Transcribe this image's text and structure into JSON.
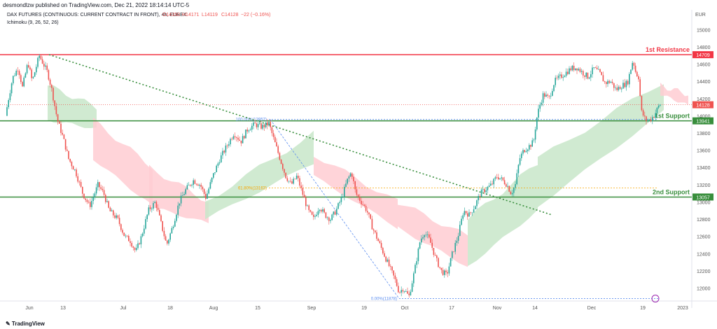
{
  "header": {
    "publisher": "desmondlzw published on TradingView.com, Dec 21, 2022 18:14:14 UTC-5",
    "symbol_line": "DAX FUTURES (CONTINUOUS: CURRENT CONTRACT IN FRONT), 4h, EUREX",
    "ohlc": {
      "o": "O14150",
      "h": "H14171",
      "l": "L14119",
      "c": "C14128",
      "chg": "−22 (−0.16%)"
    },
    "indicator": "Ichimoku (9, 26, 52, 26)",
    "currency": "EUR"
  },
  "colors": {
    "up": "#26a69a",
    "down": "#ef5350",
    "cloud_up": "#c8e6c9",
    "cloud_down": "#ffcdd2",
    "resistance": "#f23645",
    "support": "#388e3c",
    "trend": "#388e3c",
    "fib": "#5b8def",
    "fib618": "#f7a600"
  },
  "chart_data": {
    "type": "candlestick",
    "ylim": [
      11850,
      15100
    ],
    "y_ticks": [
      12000,
      12200,
      12400,
      12600,
      12800,
      13000,
      13200,
      13400,
      13600,
      13800,
      14000,
      14200,
      14400,
      14600,
      14800,
      15000
    ],
    "x_ticks": [
      "Jun",
      "13",
      "Jul",
      "18",
      "Aug",
      "15",
      "Sep",
      "19",
      "Oct",
      "17",
      "Nov",
      "14",
      "Dec",
      "19",
      "2023"
    ],
    "price_path": [
      [
        0,
        14000
      ],
      [
        3,
        14150
      ],
      [
        10,
        14440
      ],
      [
        18,
        14560
      ],
      [
        24,
        14330
      ],
      [
        32,
        14620
      ],
      [
        38,
        14400
      ],
      [
        48,
        14700
      ],
      [
        60,
        14500
      ],
      [
        66,
        14300
      ],
      [
        74,
        13950
      ],
      [
        82,
        13750
      ],
      [
        90,
        13500
      ],
      [
        100,
        13350
      ],
      [
        110,
        13100
      ],
      [
        120,
        12950
      ],
      [
        132,
        13200
      ],
      [
        140,
        13100
      ],
      [
        148,
        12900
      ],
      [
        160,
        12800
      ],
      [
        170,
        12600
      ],
      [
        178,
        12550
      ],
      [
        186,
        12420
      ],
      [
        194,
        12600
      ],
      [
        204,
        12900
      ],
      [
        214,
        13000
      ],
      [
        222,
        12750
      ],
      [
        230,
        12500
      ],
      [
        238,
        12700
      ],
      [
        248,
        13000
      ],
      [
        258,
        13150
      ],
      [
        268,
        13250
      ],
      [
        278,
        13200
      ],
      [
        286,
        13050
      ],
      [
        296,
        13300
      ],
      [
        306,
        13500
      ],
      [
        316,
        13650
      ],
      [
        326,
        13800
      ],
      [
        336,
        13700
      ],
      [
        346,
        13850
      ],
      [
        356,
        13900
      ],
      [
        366,
        13870
      ],
      [
        376,
        13910
      ],
      [
        384,
        13700
      ],
      [
        392,
        13500
      ],
      [
        400,
        13300
      ],
      [
        408,
        13200
      ],
      [
        416,
        13300
      ],
      [
        424,
        13100
      ],
      [
        432,
        12900
      ],
      [
        440,
        12800
      ],
      [
        448,
        12950
      ],
      [
        456,
        12850
      ],
      [
        464,
        12800
      ],
      [
        472,
        12900
      ],
      [
        480,
        13050
      ],
      [
        488,
        13250
      ],
      [
        494,
        13350
      ],
      [
        500,
        13100
      ],
      [
        508,
        13000
      ],
      [
        516,
        12900
      ],
      [
        524,
        12700
      ],
      [
        532,
        12550
      ],
      [
        540,
        12400
      ],
      [
        548,
        12250
      ],
      [
        556,
        12100
      ],
      [
        562,
        11950
      ],
      [
        568,
        12000
      ],
      [
        576,
        11900
      ],
      [
        584,
        12200
      ],
      [
        592,
        12550
      ],
      [
        598,
        12650
      ],
      [
        606,
        12550
      ],
      [
        614,
        12350
      ],
      [
        622,
        12200
      ],
      [
        630,
        12150
      ],
      [
        638,
        12400
      ],
      [
        646,
        12600
      ],
      [
        654,
        12900
      ],
      [
        662,
        12850
      ],
      [
        670,
        12950
      ],
      [
        678,
        13100
      ],
      [
        686,
        13150
      ],
      [
        694,
        13200
      ],
      [
        702,
        13300
      ],
      [
        710,
        13250
      ],
      [
        716,
        13200
      ],
      [
        722,
        13100
      ],
      [
        728,
        13200
      ],
      [
        734,
        13500
      ],
      [
        740,
        13600
      ],
      [
        748,
        13650
      ],
      [
        754,
        13700
      ],
      [
        758,
        13950
      ],
      [
        762,
        14100
      ],
      [
        768,
        14250
      ],
      [
        776,
        14200
      ],
      [
        784,
        14400
      ],
      [
        792,
        14450
      ],
      [
        800,
        14500
      ],
      [
        808,
        14550
      ],
      [
        816,
        14560
      ],
      [
        824,
        14500
      ],
      [
        832,
        14450
      ],
      [
        840,
        14550
      ],
      [
        848,
        14500
      ],
      [
        856,
        14380
      ],
      [
        864,
        14400
      ],
      [
        872,
        14300
      ],
      [
        880,
        14350
      ],
      [
        888,
        14380
      ],
      [
        896,
        14650
      ],
      [
        900,
        14500
      ],
      [
        904,
        14450
      ],
      [
        908,
        14050
      ],
      [
        914,
        13950
      ],
      [
        920,
        13950
      ],
      [
        926,
        14000
      ],
      [
        932,
        14100
      ],
      [
        936,
        14150
      ]
    ],
    "cloud": [
      {
        "x": [
          60,
          130
        ],
        "top": [
          14350,
          14100
        ],
        "bot": [
          13950,
          13850
        ],
        "bullish": true
      },
      {
        "x": [
          125,
          210
        ],
        "top": [
          13950,
          13400
        ],
        "bot": [
          13500,
          12950
        ],
        "bullish": false
      },
      {
        "x": [
          205,
          290
        ],
        "top": [
          13400,
          13000
        ],
        "bot": [
          12950,
          12750
        ],
        "bullish": false
      },
      {
        "x": [
          285,
          440
        ],
        "top": [
          13000,
          13800
        ],
        "bot": [
          12800,
          13450
        ],
        "bullish": true
      },
      {
        "x": [
          440,
          560
        ],
        "top": [
          13550,
          13000
        ],
        "bot": [
          13300,
          12700
        ],
        "bullish": false
      },
      {
        "x": [
          560,
          660
        ],
        "top": [
          13000,
          12600
        ],
        "bot": [
          12700,
          12250
        ],
        "bullish": false
      },
      {
        "x": [
          660,
          760
        ],
        "top": [
          12800,
          13450
        ],
        "bot": [
          12250,
          12900
        ],
        "bullish": true
      },
      {
        "x": [
          760,
          940
        ],
        "top": [
          13500,
          14400
        ],
        "bot": [
          12950,
          14050
        ],
        "bullish": true
      },
      {
        "x": [
          935,
          975
        ],
        "top": [
          14350,
          14250
        ],
        "bot": [
          14250,
          14120
        ],
        "bullish": false
      }
    ],
    "levels": [
      {
        "name": "1st Resistance",
        "value": 14709,
        "label": "14709",
        "color": "#f23645"
      },
      {
        "name": "1st Support",
        "value": 13941,
        "label": "13941",
        "color": "#388e3c"
      },
      {
        "name": "2nd Support",
        "value": 13057,
        "label": "13057",
        "color": "#388e3c"
      }
    ],
    "current": {
      "value": 14128,
      "label": "14128"
    },
    "fib": [
      {
        "label": "100.00%(13957)",
        "value": 13957
      },
      {
        "label": "61.80%(13163)",
        "value": 13163
      },
      {
        "label": "0.00%(11878)",
        "value": 11878
      }
    ],
    "trendline": {
      "from": [
        62,
        14709
      ],
      "to": [
        780,
        12850
      ]
    },
    "fib_diag": {
      "from": [
        378,
        13957
      ],
      "to": [
        562,
        11878
      ]
    }
  }
}
